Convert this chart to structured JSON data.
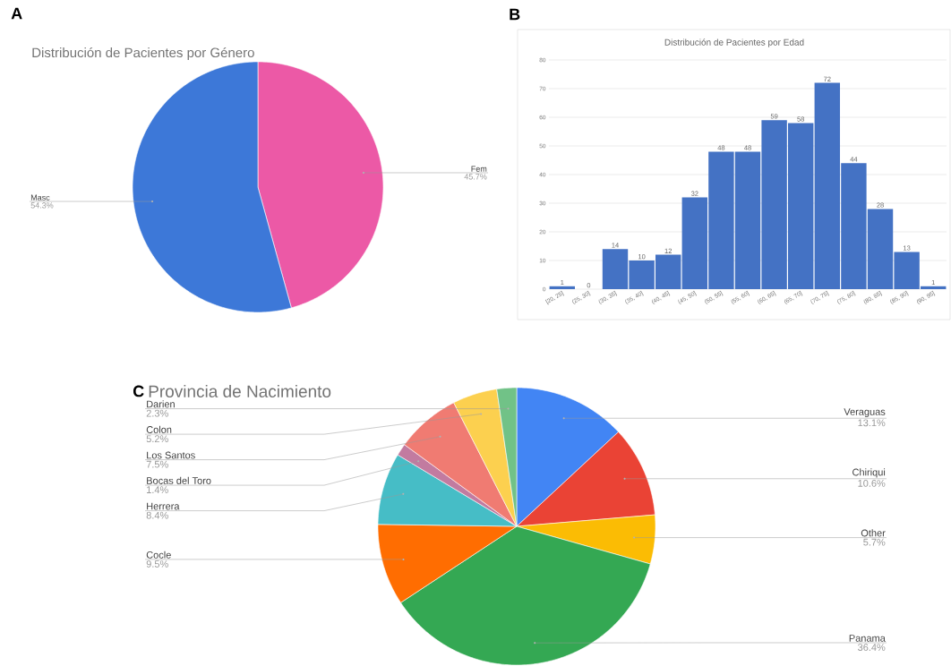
{
  "chart_data": [
    {
      "type": "pie",
      "title": "Distribución de Pacientes por Género",
      "annotations": [
        "A"
      ],
      "categories": [
        "Fem",
        "Masc"
      ],
      "values": [
        45.7,
        54.3
      ],
      "colors": [
        "#ec59a6",
        "#3d78d8"
      ],
      "value_labels": [
        "45.7%",
        "54.3%"
      ]
    },
    {
      "type": "bar",
      "title": "Distribución de Pacientes por Edad",
      "annotations": [
        "B"
      ],
      "categories": [
        "[20, 25]",
        "(25, 30]",
        "(30, 35]",
        "(35, 40]",
        "(40, 45]",
        "(45, 50]",
        "(50, 55]",
        "(55, 60]",
        "(60, 65]",
        "(65, 70]",
        "(70, 75]",
        "(75, 80]",
        "(80, 85]",
        "(85, 90]",
        "(90, 95]"
      ],
      "values": [
        1,
        0,
        14,
        10,
        12,
        32,
        48,
        48,
        59,
        58,
        72,
        44,
        28,
        13,
        1
      ],
      "color": "#4472c4",
      "ylim": [
        0,
        80
      ],
      "yticks": [
        0,
        10,
        20,
        30,
        40,
        50,
        60,
        70,
        80
      ],
      "grid": "y",
      "data_labels": true
    },
    {
      "type": "pie",
      "title": "Provincia de Nacimiento",
      "annotations": [
        "C"
      ],
      "categories": [
        "Veraguas",
        "Chiriqui",
        "Other",
        "Panama",
        "Cocle",
        "Herrera",
        "Bocas del Toro",
        "Los Santos",
        "Colon",
        "Darien"
      ],
      "values": [
        13.1,
        10.6,
        5.7,
        36.4,
        9.5,
        8.4,
        1.4,
        7.5,
        5.2,
        2.3
      ],
      "colors": [
        "#4285f4",
        "#ea4335",
        "#fbbc04",
        "#34a853",
        "#ff6d01",
        "#46bdc6",
        "#c27ba0",
        "#f07b72",
        "#fcd04f",
        "#71c287"
      ],
      "value_labels": [
        "13.1%",
        "10.6%",
        "5.7%",
        "36.4%",
        "9.5%",
        "8.4%",
        "1.4%",
        "7.5%",
        "5.2%",
        "2.3%"
      ]
    }
  ]
}
